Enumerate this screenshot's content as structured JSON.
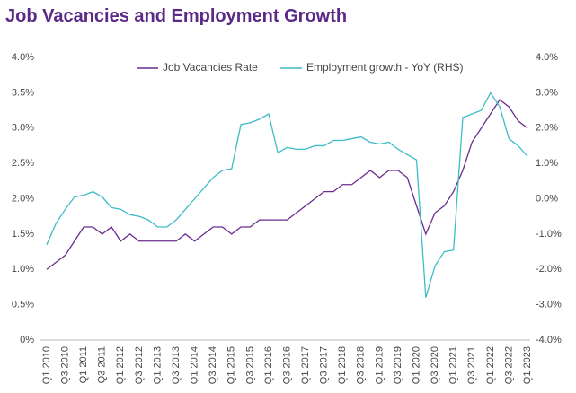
{
  "chart_data": {
    "type": "line",
    "title": "Job Vacancies and Employment Growth",
    "categories": [
      "Q1 2010",
      null,
      "Q3 2010",
      null,
      "Q1 2011",
      null,
      "Q3 2011",
      null,
      "Q1 2012",
      null,
      "Q3 2012",
      null,
      "Q1 2013",
      null,
      "Q3 2013",
      null,
      "Q1 2014",
      null,
      "Q3 2014",
      null,
      "Q1 2015",
      null,
      "Q3 2015",
      null,
      "Q1 2016",
      null,
      "Q3 2016",
      null,
      "Q1 2017",
      null,
      "Q3 2017",
      null,
      "Q1 2018",
      null,
      "Q3 2018",
      null,
      "Q1 2019",
      null,
      "Q3 2019",
      null,
      "Q1 2020",
      null,
      "Q3 2020",
      null,
      "Q1 2021",
      null,
      "Q3 2021",
      null,
      "Q1 2022",
      null,
      "Q3 2022",
      null,
      "Q1 2023"
    ],
    "series": [
      {
        "name": "Job Vacancies Rate",
        "color": "#6a2c8e",
        "values": [
          1.0,
          1.1,
          1.2,
          1.4,
          1.6,
          1.6,
          1.5,
          1.6,
          1.4,
          1.5,
          1.4,
          1.4,
          1.4,
          1.4,
          1.4,
          1.5,
          1.4,
          1.5,
          1.6,
          1.6,
          1.5,
          1.6,
          1.6,
          1.7,
          1.7,
          1.7,
          1.7,
          1.8,
          1.9,
          2.0,
          2.1,
          2.1,
          2.2,
          2.2,
          2.3,
          2.4,
          2.3,
          2.4,
          2.4,
          2.3,
          1.9,
          1.5,
          1.8,
          1.9,
          2.1,
          2.4,
          2.8,
          3.0,
          3.2,
          3.4,
          3.3,
          3.1,
          3.0
        ]
      },
      {
        "name": "Employment growth - YoY (RHS)",
        "color": "#3dbcc8",
        "axis": "y2",
        "values": [
          -1.3,
          -0.7,
          -0.3,
          0.05,
          0.1,
          0.2,
          0.05,
          -0.25,
          -0.3,
          -0.45,
          -0.5,
          -0.6,
          -0.8,
          -0.8,
          -0.6,
          -0.3,
          0.0,
          0.3,
          0.6,
          0.8,
          0.85,
          2.1,
          2.15,
          2.25,
          2.4,
          1.3,
          1.45,
          1.4,
          1.4,
          1.5,
          1.5,
          1.65,
          1.65,
          1.7,
          1.75,
          1.6,
          1.55,
          1.6,
          1.4,
          1.25,
          1.1,
          -2.8,
          -1.9,
          -1.5,
          -1.45,
          2.3,
          2.4,
          2.5,
          3.0,
          2.6,
          1.7,
          1.5,
          1.2
        ]
      }
    ],
    "ylim": [
      0,
      4
    ],
    "yticks": [
      {
        "value": 0,
        "label": "0%"
      },
      {
        "value": 0.5,
        "label": "0.5%"
      },
      {
        "value": 1,
        "label": "1.0%"
      },
      {
        "value": 1.5,
        "label": "1.5%"
      },
      {
        "value": 2,
        "label": "2.0%"
      },
      {
        "value": 2.5,
        "label": "2.5%"
      },
      {
        "value": 3,
        "label": "3.0%"
      },
      {
        "value": 3.5,
        "label": "3.5%"
      },
      {
        "value": 4,
        "label": "4.0%"
      }
    ],
    "y2lim": [
      -4,
      4
    ],
    "y2ticks": [
      {
        "value": -4,
        "label": "-4.0%"
      },
      {
        "value": -3,
        "label": "-3.0%"
      },
      {
        "value": -2,
        "label": "-2.0%"
      },
      {
        "value": -1,
        "label": "-1.0%"
      },
      {
        "value": 0,
        "label": "0.0%"
      },
      {
        "value": 1,
        "label": "1.0%"
      },
      {
        "value": 2,
        "label": "2.0%"
      },
      {
        "value": 3,
        "label": "3.0%"
      },
      {
        "value": 4,
        "label": "4.0%"
      }
    ],
    "grid": false,
    "legend": "top"
  }
}
